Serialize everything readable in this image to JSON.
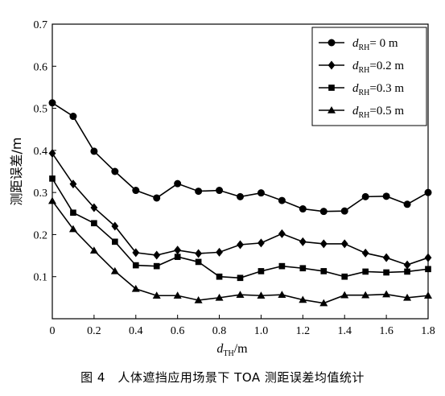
{
  "caption": "图 4　人体遮挡应用场景下 TOA 测距误差均值统计",
  "chart_data": {
    "type": "line",
    "xlabel": {
      "main": "d",
      "sub": "TH",
      "unit": "/m"
    },
    "ylabel": "测距误差/m",
    "xlim": [
      0,
      1.8
    ],
    "ylim": [
      0,
      0.7
    ],
    "xticks": [
      0,
      0.2,
      0.4,
      0.6,
      0.8,
      1.0,
      1.2,
      1.4,
      1.6,
      1.8
    ],
    "xtick_labels": [
      "0",
      "0.2",
      "0.4",
      "0.6",
      "0.8",
      "1.0",
      "1.2",
      "1.4",
      "1.6",
      "1.8"
    ],
    "yticks": [
      0.1,
      0.2,
      0.3,
      0.4,
      0.5,
      0.6,
      0.7
    ],
    "ytick_labels": [
      "0.1",
      "0.2",
      "0.3",
      "0.4",
      "0.5",
      "0.6",
      "0.7"
    ],
    "grid": false,
    "legend_position": "top-right",
    "x": [
      0,
      0.1,
      0.2,
      0.3,
      0.4,
      0.5,
      0.6,
      0.7,
      0.8,
      0.9,
      1.0,
      1.1,
      1.2,
      1.3,
      1.4,
      1.5,
      1.6,
      1.7,
      1.8
    ],
    "series": [
      {
        "legend_main": "d",
        "legend_sub": "RH",
        "legend_value": "= 0 m",
        "marker": "circle",
        "values": [
          0.513,
          0.481,
          0.398,
          0.35,
          0.305,
          0.287,
          0.321,
          0.303,
          0.305,
          0.29,
          0.299,
          0.281,
          0.261,
          0.255,
          0.256,
          0.29,
          0.291,
          0.272,
          0.3
        ]
      },
      {
        "legend_main": "d",
        "legend_sub": "RH",
        "legend_value": "=0.2 m",
        "marker": "diamond",
        "values": [
          0.393,
          0.32,
          0.264,
          0.22,
          0.157,
          0.151,
          0.163,
          0.155,
          0.158,
          0.176,
          0.18,
          0.202,
          0.183,
          0.178,
          0.178,
          0.156,
          0.145,
          0.128,
          0.145
        ]
      },
      {
        "legend_main": "d",
        "legend_sub": "RH",
        "legend_value": "=0.3 m",
        "marker": "square",
        "values": [
          0.333,
          0.252,
          0.227,
          0.183,
          0.127,
          0.125,
          0.147,
          0.135,
          0.1,
          0.097,
          0.113,
          0.125,
          0.12,
          0.113,
          0.1,
          0.112,
          0.11,
          0.112,
          0.118
        ]
      },
      {
        "legend_main": "d",
        "legend_sub": "RH",
        "legend_value": "=0.5 m",
        "marker": "triangle",
        "values": [
          0.28,
          0.213,
          0.162,
          0.113,
          0.071,
          0.055,
          0.055,
          0.044,
          0.05,
          0.057,
          0.055,
          0.057,
          0.045,
          0.037,
          0.056,
          0.056,
          0.058,
          0.05,
          0.055
        ]
      }
    ]
  }
}
